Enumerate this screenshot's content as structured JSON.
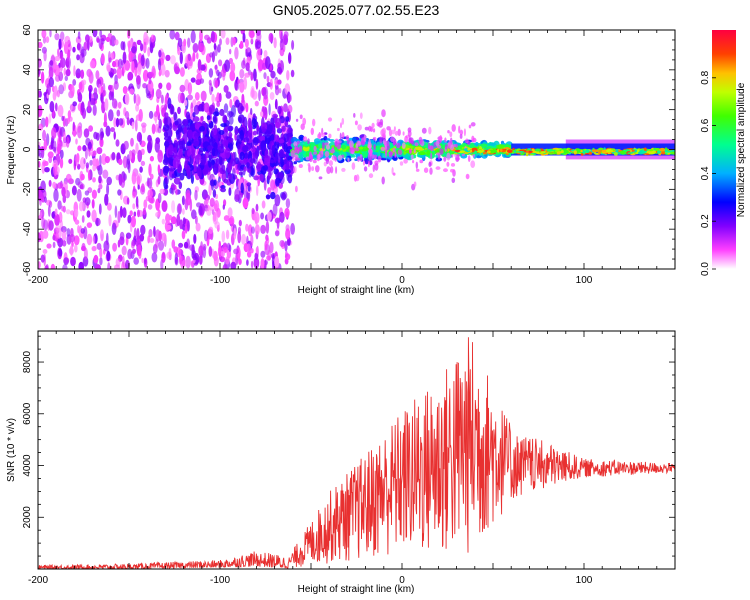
{
  "title": "GN05.2025.077.02.55.E23",
  "chart_data": [
    {
      "type": "heatmap",
      "xlabel": "Height of straight line (km)",
      "ylabel": "Frequency (Hz)",
      "xlim": [
        -200,
        150
      ],
      "ylim": [
        -60,
        60
      ],
      "xticks": [
        "-200",
        "-100",
        "0",
        "100"
      ],
      "yticks": [
        "-60",
        "-40",
        "-20",
        "0",
        "20",
        "40",
        "60"
      ],
      "colorbar": {
        "label": "Normalized spectral amplitude",
        "range": [
          0,
          1
        ],
        "ticks": [
          "0.0",
          "0.2",
          "0.4",
          "0.6",
          "0.8"
        ],
        "colormap": [
          "#ffffff",
          "#ff00ff",
          "#8000ff",
          "#0000ff",
          "#00c0ff",
          "#00ff80",
          "#80ff00",
          "#ffff00",
          "#ff8000",
          "#ff0000"
        ]
      },
      "description_regions": [
        {
          "x_range": [
            -200,
            -60
          ],
          "freq_spread": 60,
          "amplitude": [
            0.0,
            0.15
          ]
        },
        {
          "x_range": [
            -60,
            60
          ],
          "freq_spread": 10,
          "amplitude": [
            0.2,
            0.6
          ]
        },
        {
          "x_range": [
            60,
            150
          ],
          "freq_spread": 3,
          "amplitude": [
            0.5,
            0.95
          ]
        }
      ]
    },
    {
      "type": "line",
      "xlabel": "Height of straight line (km)",
      "ylabel": "SNR (10 * v/v)",
      "xlim": [
        -200,
        150
      ],
      "ylim": [
        0,
        9200
      ],
      "xticks": [
        "-200",
        "-100",
        "0",
        "100"
      ],
      "yticks": [
        "2000",
        "4000",
        "6000",
        "8000"
      ],
      "color": "#e83030",
      "series_envelope": [
        {
          "x": -200,
          "low": 0,
          "high": 150
        },
        {
          "x": -150,
          "low": 0,
          "high": 200
        },
        {
          "x": -100,
          "low": 50,
          "high": 350
        },
        {
          "x": -80,
          "low": 100,
          "high": 700
        },
        {
          "x": -62,
          "low": 0,
          "high": 500
        },
        {
          "x": -40,
          "low": 200,
          "high": 3000
        },
        {
          "x": -20,
          "low": 300,
          "high": 4500
        },
        {
          "x": 0,
          "low": 500,
          "high": 6200
        },
        {
          "x": 20,
          "low": 300,
          "high": 7500
        },
        {
          "x": 38,
          "low": 400,
          "high": 9200
        },
        {
          "x": 60,
          "low": 2500,
          "high": 5500
        },
        {
          "x": 80,
          "low": 3000,
          "high": 5000
        },
        {
          "x": 100,
          "low": 3500,
          "high": 4300
        },
        {
          "x": 150,
          "low": 3700,
          "high": 4100
        }
      ]
    }
  ]
}
